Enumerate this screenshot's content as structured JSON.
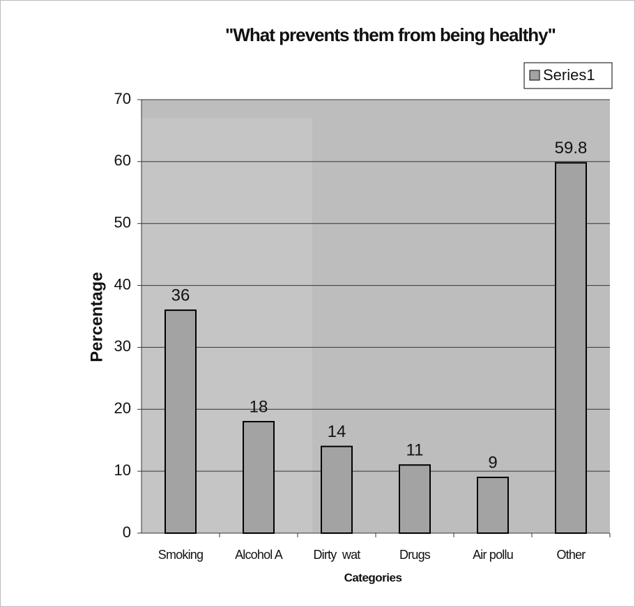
{
  "chart_data": {
    "type": "bar",
    "title": "\"What prevents them from being healthy\"",
    "x_label": "Categories",
    "y_label": "Percentage",
    "categories": [
      "Smoking",
      "Alcohol A",
      "Dirty  wat",
      "Drugs",
      "Air pollu",
      "Other"
    ],
    "series": [
      {
        "name": "Series1",
        "color": "#a3a3a3",
        "values": [
          36,
          18,
          14,
          11,
          9,
          59.8
        ]
      }
    ],
    "ylim": [
      0,
      70
    ],
    "yticks": [
      0,
      10,
      20,
      30,
      40,
      50,
      60,
      70
    ],
    "grid": true,
    "legend": "top-right"
  }
}
